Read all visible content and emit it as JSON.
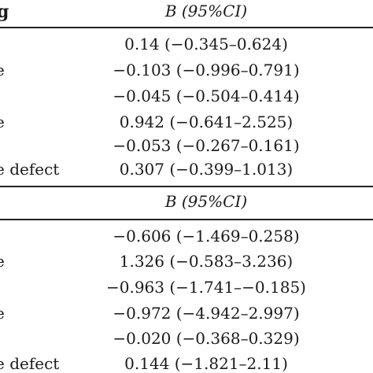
{
  "table_top": {
    "col0_header": "g",
    "col1_header": "B (95%CI)",
    "rows": [
      {
        "label": "",
        "value": "0.14 (−0.345–0.624)"
      },
      {
        "label": "e",
        "value": "−0.103 (−0.996–0.791)"
      },
      {
        "label": "",
        "value": "−0.045 (−0.504–0.414)"
      },
      {
        "label": "e",
        "value": "0.942 (−0.641–2.525)"
      },
      {
        "label": "",
        "value": "−0.053 (−0.267–0.161)"
      },
      {
        "label": "e defect",
        "value": "0.307 (−0.399–1.013)"
      }
    ]
  },
  "table_bottom": {
    "col1_header": "B (95%CI)",
    "rows": [
      {
        "label": "",
        "value": "−0.606 (−1.469–0.258)"
      },
      {
        "label": "e",
        "value": "1.326 (−0.583–3.236)"
      },
      {
        "label": "",
        "value": "−0.963 (−1.741–−0.185)"
      },
      {
        "label": "e",
        "value": "−0.972 (−4.942–2.997)"
      },
      {
        "label": "",
        "value": "−0.020 (−0.368–0.329)"
      },
      {
        "label": "e defect",
        "value": "0.144 (−1.821–2.11)"
      }
    ]
  }
}
